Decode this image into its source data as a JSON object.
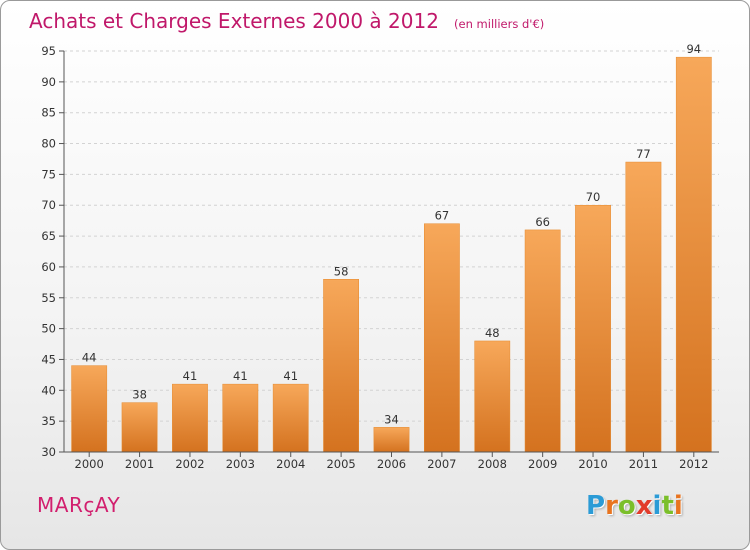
{
  "header": {
    "title": "Achats et Charges Externes 2000 à 2012",
    "subtitle": "(en milliers d'€)"
  },
  "footer": {
    "place": "MARçAY",
    "logo_text": "Proxiti"
  },
  "colors": {
    "title": "#c0186a",
    "bar_top": "#f7a85a",
    "bar_bottom": "#d4721f",
    "logo": [
      "#2b9bd6",
      "#e8741f",
      "#7bbf2a",
      "#e23b2a",
      "#2b9bd6",
      "#7bbf2a",
      "#e8741f"
    ]
  },
  "chart_data": {
    "type": "bar",
    "title": "Achats et Charges Externes 2000 à 2012",
    "subtitle": "(en milliers d'€)",
    "xlabel": "",
    "ylabel": "",
    "categories": [
      "2000",
      "2001",
      "2002",
      "2003",
      "2004",
      "2005",
      "2006",
      "2007",
      "2008",
      "2009",
      "2010",
      "2011",
      "2012"
    ],
    "values": [
      44,
      38,
      41,
      41,
      41,
      58,
      34,
      67,
      48,
      66,
      70,
      77,
      94
    ],
    "ylim": [
      30,
      95
    ],
    "yticks": [
      30,
      35,
      40,
      45,
      50,
      55,
      60,
      65,
      70,
      75,
      80,
      85,
      90,
      95
    ],
    "grid": true,
    "data_labels": true
  }
}
